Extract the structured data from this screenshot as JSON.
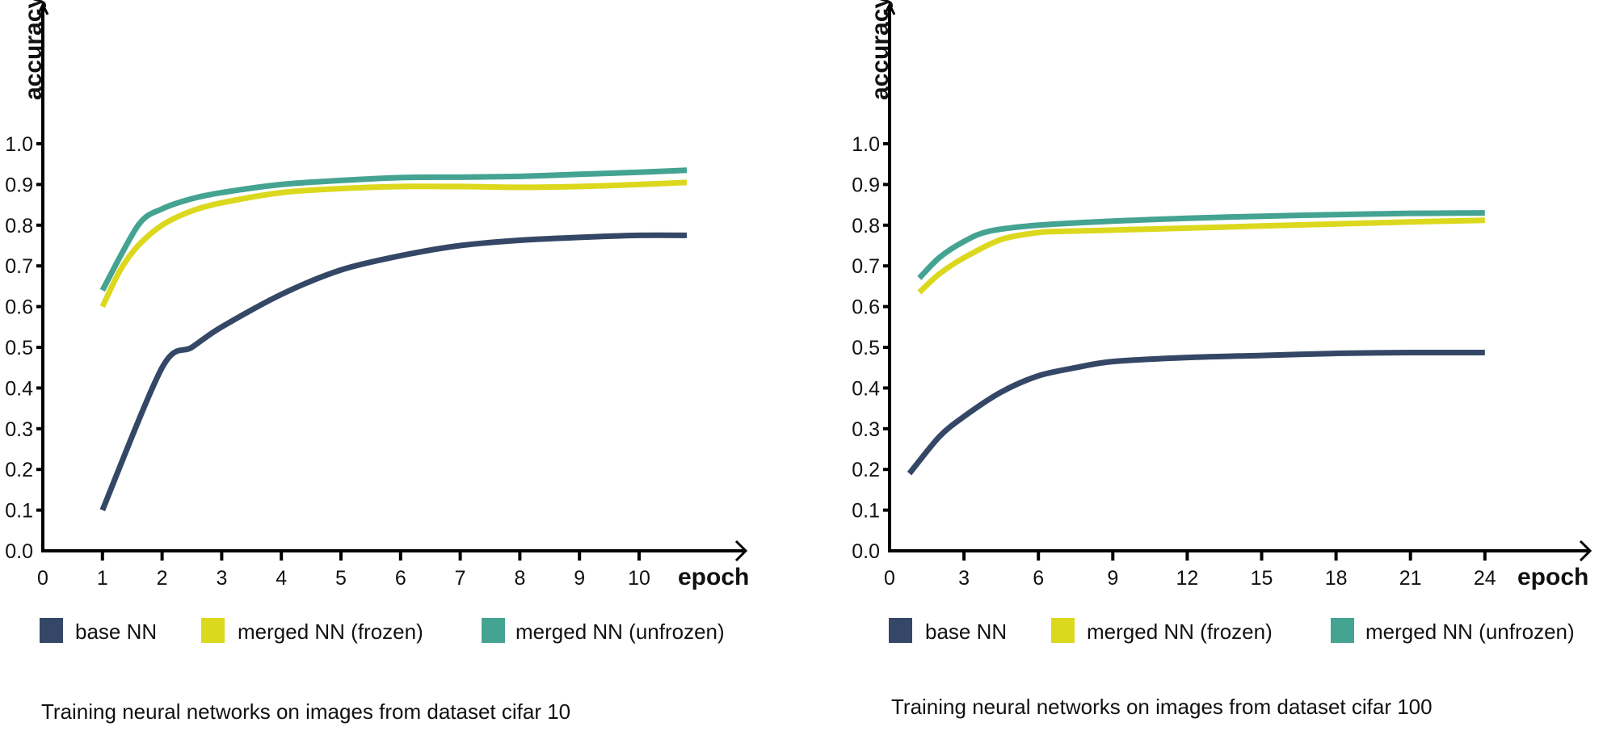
{
  "colors": {
    "base": "#354766",
    "frozen": "#dcd81e",
    "unfrozen": "#45a392",
    "axis": "#000000"
  },
  "chart_data": [
    {
      "type": "line",
      "caption": "Training neural networks on images from dataset cifar 10",
      "xlabel": "epoch",
      "ylabel": "accuracy",
      "xlim": [
        0,
        11.5
      ],
      "ylim": [
        0,
        1.0
      ],
      "x_ticks": [
        "0",
        "1",
        "2",
        "3",
        "4",
        "5",
        "6",
        "7",
        "8",
        "9",
        "10"
      ],
      "y_ticks": [
        "0.0",
        "0.1",
        "0.2",
        "0.3",
        "0.4",
        "0.5",
        "0.6",
        "0.7",
        "0.8",
        "0.9",
        "1.0"
      ],
      "grid": false,
      "legend_position": "bottom",
      "series": [
        {
          "name": "base NN",
          "color_key": "base",
          "x": [
            1,
            2,
            2.5,
            3,
            4,
            5,
            6,
            7,
            8,
            9,
            10,
            10.8
          ],
          "y": [
            0.1,
            0.45,
            0.5,
            0.55,
            0.63,
            0.69,
            0.725,
            0.75,
            0.763,
            0.77,
            0.775,
            0.775
          ]
        },
        {
          "name": "merged NN (frozen)",
          "color_key": "frozen",
          "x": [
            1,
            1.3,
            1.6,
            2,
            2.5,
            3,
            4,
            5,
            6,
            7,
            8,
            9,
            10,
            10.8
          ],
          "y": [
            0.6,
            0.69,
            0.75,
            0.8,
            0.835,
            0.855,
            0.88,
            0.89,
            0.895,
            0.895,
            0.893,
            0.895,
            0.9,
            0.905
          ]
        },
        {
          "name": "merged NN (unfrozen)",
          "color_key": "unfrozen",
          "x": [
            1,
            1.6,
            2,
            2.5,
            3,
            4,
            5,
            6,
            7,
            8,
            9,
            10,
            10.8
          ],
          "y": [
            0.64,
            0.8,
            0.84,
            0.865,
            0.88,
            0.9,
            0.91,
            0.917,
            0.918,
            0.92,
            0.925,
            0.93,
            0.935
          ]
        }
      ]
    },
    {
      "type": "line",
      "caption": "Training neural networks on images from dataset cifar 100",
      "xlabel": "epoch",
      "ylabel": "accuracy",
      "xlim": [
        0,
        28.5
      ],
      "ylim": [
        0,
        1.0
      ],
      "x_ticks": [
        "0",
        "3",
        "6",
        "9",
        "12",
        "15",
        "18",
        "21",
        "24"
      ],
      "y_ticks": [
        "0.0",
        "0.1",
        "0.2",
        "0.3",
        "0.4",
        "0.5",
        "0.6",
        "0.7",
        "0.8",
        "0.9",
        "1.0"
      ],
      "grid": false,
      "legend_position": "bottom",
      "series": [
        {
          "name": "base NN",
          "color_key": "base",
          "x": [
            0.8,
            2,
            3,
            4.5,
            6,
            7.5,
            9,
            12,
            15,
            18,
            21,
            24
          ],
          "y": [
            0.19,
            0.28,
            0.33,
            0.39,
            0.43,
            0.45,
            0.465,
            0.475,
            0.48,
            0.485,
            0.487,
            0.487
          ]
        },
        {
          "name": "merged NN (frozen)",
          "color_key": "frozen",
          "x": [
            1.2,
            2,
            3,
            4.5,
            6,
            7,
            9,
            12,
            15,
            18,
            21,
            24
          ],
          "y": [
            0.635,
            0.68,
            0.72,
            0.765,
            0.782,
            0.785,
            0.788,
            0.793,
            0.798,
            0.803,
            0.808,
            0.812
          ]
        },
        {
          "name": "merged NN (unfrozen)",
          "color_key": "unfrozen",
          "x": [
            1.2,
            2,
            3,
            4,
            6,
            9,
            12,
            15,
            18,
            21,
            24
          ],
          "y": [
            0.67,
            0.72,
            0.76,
            0.785,
            0.8,
            0.81,
            0.817,
            0.822,
            0.826,
            0.829,
            0.83
          ]
        }
      ]
    }
  ]
}
